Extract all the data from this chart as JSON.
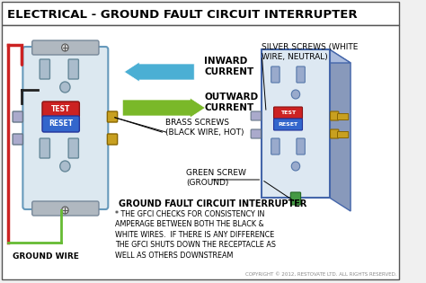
{
  "title": "ELECTRICAL - GROUND FAULT CIRCUIT INTERRUPTER",
  "bg_color": "#f0f0f0",
  "title_bg": "#e8e8e8",
  "outlet_front_color": "#dce8f0",
  "outlet_body_color": "#c5d8e8",
  "label_inward": "INWARD\nCURRENT",
  "label_outward": "OUTWARD\nCURRENT",
  "label_brass": "BRASS SCREWS\n(BLACK WIRE, HOT)",
  "label_silver": "SILVER SCREWS (WHITE\nWIRE, NEUTRAL)",
  "label_green": "GREEN SCREW\n(GROUND)",
  "label_ground_wire": "GROUND WIRE",
  "footer_title": "GROUND FAULT CIRCUIT INTERRUPTER",
  "footer_text": "* THE GFCI CHECKS FOR CONSISTENCY IN\nAMPERAGE BETWEEN BOTH THE BLACK &\nWHITE WIRES.  IF THERE IS ANY DIFFERENCE\nTHE GFCI SHUTS DOWN THE RECEPTACLE AS\nWELL AS OTHERS DOWNSTREAM",
  "copyright": "COPYRIGHT © 2012, RESTOVATE LTD. ALL RIGHTS RESERVED.",
  "arrow_inward_color": "#4bafd4",
  "arrow_outward_color": "#7ab829",
  "wire_red": "#cc2222",
  "wire_black": "#222222",
  "wire_green": "#66bb33",
  "test_btn_color": "#cc2222",
  "reset_btn_color": "#3366cc",
  "screw_brass": "#c8a020",
  "screw_silver": "#aaaacc",
  "screw_green_color": "#449944"
}
